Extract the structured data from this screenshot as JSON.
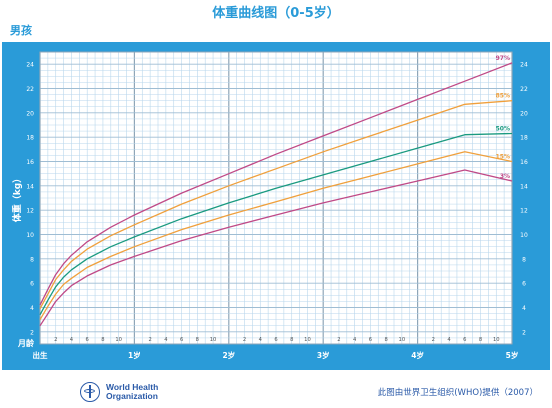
{
  "page": {
    "title": "体重曲线图（0-5岁）",
    "gender": "男孩",
    "credit": "此图由世界卫生组织(WHO)提供（2007）",
    "logo_line1": "World Health",
    "logo_line2": "Organization"
  },
  "colors": {
    "panel": "#2a9bd8",
    "grid_bg": "#ffffff",
    "grid_line": "#b9d7ec",
    "p97": "#c04a87",
    "p85": "#f0a03c",
    "p50": "#1a9a80",
    "p15": "#f0a03c",
    "p3": "#c04a87"
  },
  "chart_data": {
    "type": "line",
    "title": "体重曲线图（0-5岁）",
    "ylabel": "体重（kg）",
    "xlabel": "",
    "x_unit_label": "月龄",
    "ylim": [
      1,
      25
    ],
    "xlim": [
      0,
      60
    ],
    "y_ticks": [
      2,
      4,
      6,
      8,
      10,
      12,
      14,
      16,
      18,
      20,
      22,
      24
    ],
    "x_minor_labels": [
      {
        "x": 2,
        "label": "2"
      },
      {
        "x": 4,
        "label": "4"
      },
      {
        "x": 6,
        "label": "6"
      },
      {
        "x": 8,
        "label": "8"
      },
      {
        "x": 10,
        "label": "10"
      },
      {
        "x": 14,
        "label": "2"
      },
      {
        "x": 16,
        "label": "4"
      },
      {
        "x": 18,
        "label": "6"
      },
      {
        "x": 20,
        "label": "8"
      },
      {
        "x": 22,
        "label": "10"
      },
      {
        "x": 26,
        "label": "2"
      },
      {
        "x": 28,
        "label": "4"
      },
      {
        "x": 30,
        "label": "6"
      },
      {
        "x": 32,
        "label": "8"
      },
      {
        "x": 34,
        "label": "10"
      },
      {
        "x": 38,
        "label": "2"
      },
      {
        "x": 40,
        "label": "4"
      },
      {
        "x": 42,
        "label": "6"
      },
      {
        "x": 44,
        "label": "8"
      },
      {
        "x": 46,
        "label": "10"
      },
      {
        "x": 50,
        "label": "2"
      },
      {
        "x": 52,
        "label": "4"
      },
      {
        "x": 54,
        "label": "6"
      },
      {
        "x": 56,
        "label": "8"
      },
      {
        "x": 58,
        "label": "10"
      }
    ],
    "x_major_labels": [
      {
        "x": 0,
        "label": "出生"
      },
      {
        "x": 12,
        "label": "1岁"
      },
      {
        "x": 24,
        "label": "2岁"
      },
      {
        "x": 36,
        "label": "3岁"
      },
      {
        "x": 48,
        "label": "4岁"
      },
      {
        "x": 60,
        "label": "5岁"
      }
    ],
    "x": [
      0,
      1,
      2,
      3,
      4,
      6,
      9,
      12,
      18,
      24,
      30,
      36,
      42,
      48,
      54,
      60
    ],
    "series": [
      {
        "name": "97%",
        "color_key": "p97",
        "values": [
          4.2,
          5.5,
          6.7,
          7.6,
          8.3,
          9.4,
          10.6,
          11.6,
          13.4,
          15.0,
          16.6,
          18.1,
          19.6,
          21.1,
          22.6,
          24.1
        ]
      },
      {
        "name": "85%",
        "color_key": "p85",
        "values": [
          3.9,
          5.1,
          6.3,
          7.1,
          7.8,
          8.8,
          9.9,
          10.8,
          12.5,
          14.0,
          15.4,
          16.8,
          18.1,
          19.4,
          20.7,
          21.0
        ]
      },
      {
        "name": "50%",
        "color_key": "p50",
        "values": [
          3.4,
          4.6,
          5.7,
          6.5,
          7.1,
          8.0,
          9.0,
          9.8,
          11.3,
          12.6,
          13.8,
          14.9,
          16.0,
          17.1,
          18.2,
          18.3
        ]
      },
      {
        "name": "15%",
        "color_key": "p15",
        "values": [
          3.0,
          4.1,
          5.1,
          5.9,
          6.4,
          7.3,
          8.2,
          9.0,
          10.4,
          11.6,
          12.7,
          13.8,
          14.8,
          15.8,
          16.8,
          16.0
        ]
      },
      {
        "name": "3%",
        "color_key": "p3",
        "values": [
          2.5,
          3.5,
          4.5,
          5.2,
          5.8,
          6.6,
          7.5,
          8.2,
          9.5,
          10.6,
          11.6,
          12.6,
          13.5,
          14.4,
          15.3,
          14.4
        ]
      }
    ],
    "grid": true
  }
}
